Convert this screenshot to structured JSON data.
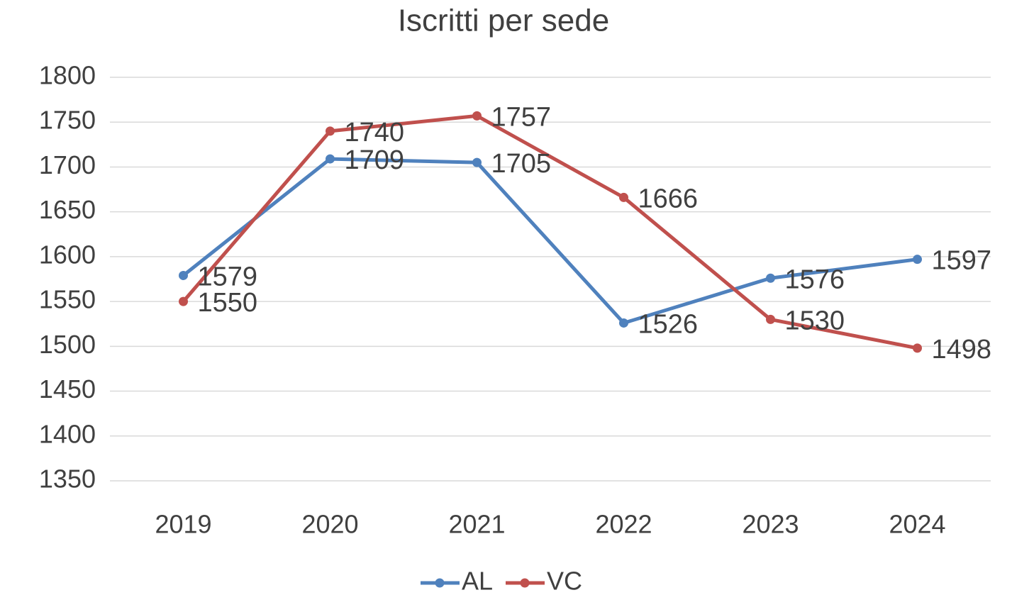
{
  "chart_data": {
    "type": "line",
    "title": "Iscritti per sede",
    "categories": [
      "2019",
      "2020",
      "2021",
      "2022",
      "2023",
      "2024"
    ],
    "series": [
      {
        "name": "AL",
        "color": "#4f81bd",
        "values": [
          1579,
          1709,
          1705,
          1526,
          1576,
          1597
        ]
      },
      {
        "name": "VC",
        "color": "#c0504d",
        "values": [
          1550,
          1740,
          1757,
          1666,
          1530,
          1498
        ]
      }
    ],
    "ylim": [
      1350,
      1800
    ],
    "yticks": [
      1350,
      1400,
      1450,
      1500,
      1550,
      1600,
      1650,
      1700,
      1750,
      1800
    ],
    "grid": true,
    "legend": "bottom",
    "data_labels": true
  }
}
